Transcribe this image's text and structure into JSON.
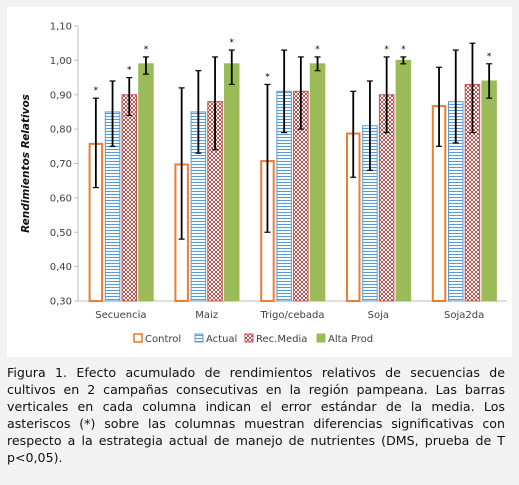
{
  "chart_data": {
    "type": "bar",
    "ylabel": "Rendimientos Relativos",
    "xlabel": "",
    "ylim": [
      0.3,
      1.1
    ],
    "yticks": [
      "0,30",
      "0,40",
      "0,50",
      "0,60",
      "0,70",
      "0,80",
      "0,90",
      "1,00",
      "1,10"
    ],
    "ytick_values": [
      0.3,
      0.4,
      0.5,
      0.6,
      0.7,
      0.8,
      0.9,
      1.0,
      1.1
    ],
    "categories": [
      "Secuencia",
      "Maiz",
      "Trigo/cebada",
      "Soja",
      "Soja2da"
    ],
    "legend_position": "bottom",
    "grid": false,
    "series": [
      {
        "name": "Control",
        "color": "#ed7d31",
        "pattern": "outline",
        "values": [
          0.76,
          0.7,
          0.71,
          0.79,
          0.87
        ],
        "err_low": [
          0.63,
          0.48,
          0.5,
          0.66,
          0.75
        ],
        "err_high": [
          0.89,
          0.92,
          0.93,
          0.91,
          0.98
        ],
        "asterisk": [
          true,
          false,
          true,
          false,
          false
        ]
      },
      {
        "name": "Actual",
        "color": "#5b9bd5",
        "pattern": "hstripes",
        "values": [
          0.85,
          0.85,
          0.91,
          0.81,
          0.88
        ],
        "err_low": [
          0.75,
          0.73,
          0.79,
          0.68,
          0.76
        ],
        "err_high": [
          0.94,
          0.97,
          1.03,
          0.94,
          1.03
        ],
        "asterisk": [
          false,
          false,
          false,
          false,
          false
        ]
      },
      {
        "name": "Rec.Media",
        "color": "#c0504d",
        "pattern": "checker",
        "values": [
          0.9,
          0.88,
          0.91,
          0.9,
          0.93
        ],
        "err_low": [
          0.84,
          0.74,
          0.8,
          0.79,
          0.79
        ],
        "err_high": [
          0.95,
          1.01,
          1.01,
          1.01,
          1.05
        ],
        "asterisk": [
          true,
          false,
          false,
          true,
          false
        ]
      },
      {
        "name": "Alta Prod",
        "color": "#9bbb59",
        "pattern": "solid",
        "values": [
          0.99,
          0.99,
          0.99,
          1.0,
          0.94
        ],
        "err_low": [
          0.96,
          0.93,
          0.97,
          0.99,
          0.89
        ],
        "err_high": [
          1.01,
          1.03,
          1.01,
          1.01,
          0.99
        ],
        "asterisk": [
          true,
          true,
          true,
          true,
          true
        ]
      }
    ],
    "asterisk_symbol": "*"
  },
  "caption": {
    "label": "Figura 1.",
    "text": " Efecto acumulado de rendimientos relativos de secuencias de cultivos en 2 campañas consecutivas en la región pampeana. Las barras verticales en cada columna indican el error estándar de la media. Los asteriscos (*) sobre las columnas muestran diferencias significativas con respecto a la estrategia actual de manejo de nutrientes (DMS, prueba de T p<0,05)."
  }
}
